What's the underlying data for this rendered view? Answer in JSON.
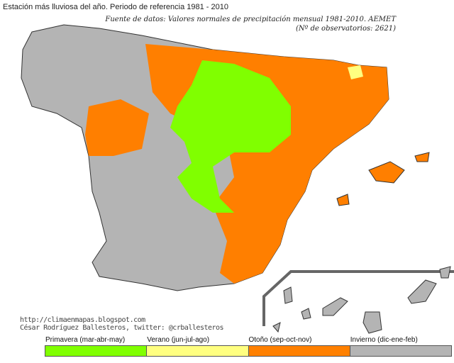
{
  "title": "Estación más lluviosa del año. Periodo de referencia 1981 - 2010",
  "source_line1": "Fuente de datos: Valores normales de precipitación mensual 1981-2010. AEMET",
  "source_line2": "(Nº de observatorios: 2621)",
  "credits": {
    "url": "http://climaenmapas.blogspot.com",
    "author": "César Rodríguez Ballesteros, twitter: @crballesteros"
  },
  "legend": [
    {
      "label": "Primavera (mar-abr-may)",
      "color": "#80ff00"
    },
    {
      "label": "Verano (jun-jul-ago)",
      "color": "#ffff80"
    },
    {
      "label": "Otoño (sep-oct-nov)",
      "color": "#ff8000"
    },
    {
      "label": "Invierno (dic-ene-feb)",
      "color": "#b4b4b4"
    }
  ]
}
